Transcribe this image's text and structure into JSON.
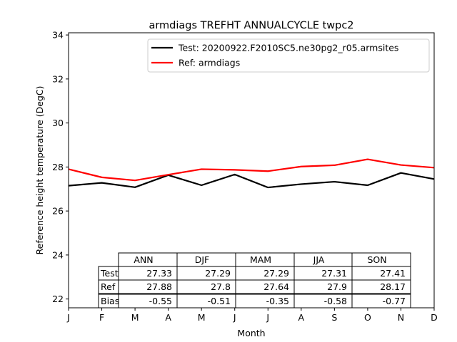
{
  "chart_data": {
    "type": "line",
    "title": "armdiags TREFHT ANNUALCYCLE twpc2",
    "xlabel": "Month",
    "ylabel": "Reference height temperature (DegC)",
    "x_ticks": [
      "J",
      "F",
      "M",
      "A",
      "M",
      "J",
      "J",
      "A",
      "S",
      "O",
      "N",
      "D"
    ],
    "xlim": [
      0,
      11
    ],
    "ylim": [
      21.6,
      34.1
    ],
    "y_ticks": [
      22,
      24,
      26,
      28,
      30,
      32,
      34
    ],
    "grid": false,
    "legend_placement": "top-right",
    "series": [
      {
        "name": "Test: 20200922.F2010SC5.ne30pg2_r05.armsites",
        "color": "#000000",
        "values": [
          27.15,
          27.28,
          27.08,
          27.63,
          27.17,
          27.66,
          27.07,
          27.22,
          27.33,
          27.17,
          27.73,
          27.45
        ]
      },
      {
        "name": "Ref: armdiags",
        "color": "#ff0000",
        "values": [
          27.9,
          27.53,
          27.39,
          27.65,
          27.9,
          27.87,
          27.81,
          28.02,
          28.08,
          28.35,
          28.09,
          27.97
        ]
      }
    ],
    "table": {
      "columns": [
        "ANN",
        "DJF",
        "MAM",
        "JJA",
        "SON"
      ],
      "rows": [
        {
          "label": "Test",
          "values": [
            "27.33",
            "27.29",
            "27.29",
            "27.31",
            "27.41"
          ]
        },
        {
          "label": "Ref",
          "values": [
            "27.88",
            "27.8",
            "27.64",
            "27.9",
            "28.17"
          ]
        },
        {
          "label": "Bias",
          "values": [
            "-0.55",
            "-0.51",
            "-0.35",
            "-0.58",
            "-0.77"
          ]
        }
      ]
    }
  }
}
